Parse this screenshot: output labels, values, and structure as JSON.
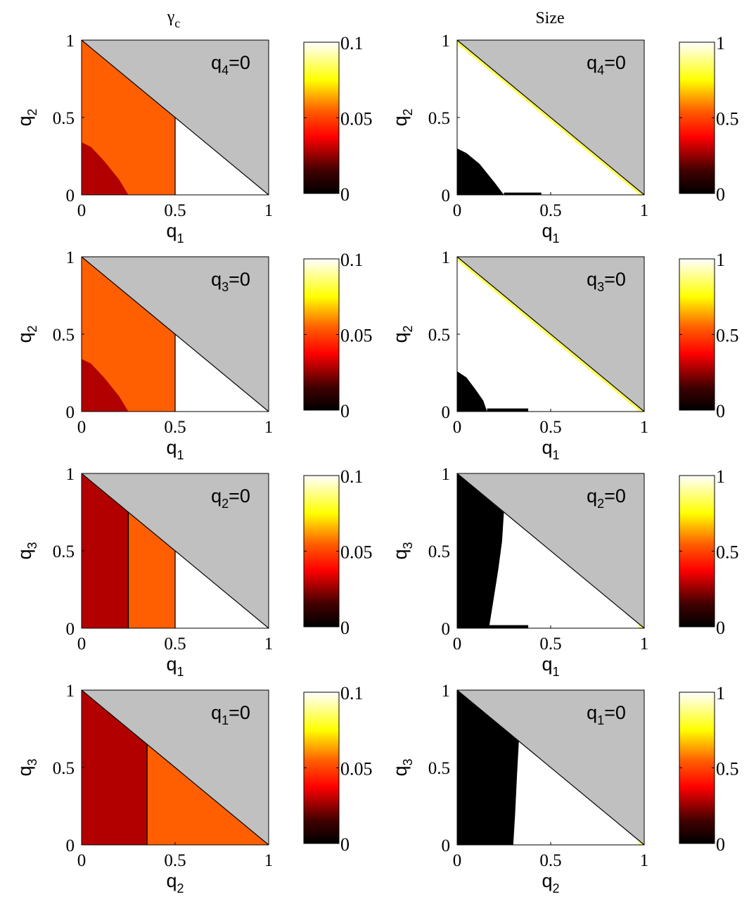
{
  "column_titles": {
    "left": {
      "main": "γ",
      "sub": "c"
    },
    "right": {
      "main": "Size",
      "sub": ""
    }
  },
  "colors": {
    "simplex_excluded": "#c0c0c0",
    "low_region": "#b20000",
    "mid_region": "#ff5f00",
    "zero_region": "#ffffff",
    "size_zero": "#000000",
    "size_edge": "#ffff60",
    "colormap": "hot"
  },
  "chart_data": [
    {
      "type": "heatmap",
      "panel": "gamma_c_q4_zero",
      "column": "left",
      "annotation": {
        "main": "q",
        "sub": "4",
        "rest": "=0"
      },
      "xlabel": {
        "main": "q",
        "sub": "1"
      },
      "ylabel": {
        "main": "q",
        "sub": "2"
      },
      "xlim": [
        0,
        1
      ],
      "ylim": [
        0,
        1
      ],
      "x_ticks": [
        "0",
        "0.5",
        "1"
      ],
      "y_ticks": [
        "0",
        "0.5",
        "1"
      ],
      "colorbar": {
        "range": [
          0,
          0.1
        ],
        "ticks": [
          "0",
          "0.05",
          "0.1"
        ]
      },
      "regions": [
        {
          "fill": "mid_region",
          "polygon": [
            [
              0,
              0
            ],
            [
              0.5,
              0
            ],
            [
              0.5,
              0.5
            ],
            [
              0,
              1
            ]
          ]
        },
        {
          "fill": "low_region",
          "polygon": [
            [
              0,
              0
            ],
            [
              0.25,
              0
            ],
            [
              0.2,
              0.1
            ],
            [
              0.12,
              0.22
            ],
            [
              0.05,
              0.31
            ],
            [
              0,
              0.34
            ]
          ]
        },
        {
          "fill": "zero_region",
          "polygon": [
            [
              0.5,
              0
            ],
            [
              1,
              0
            ],
            [
              0.5,
              0.5
            ]
          ]
        }
      ],
      "boundaries": [
        [
          [
            0.5,
            0
          ],
          [
            0.5,
            0.5
          ]
        ]
      ]
    },
    {
      "type": "heatmap",
      "panel": "size_q4_zero",
      "column": "right",
      "annotation": {
        "main": "q",
        "sub": "4",
        "rest": "=0"
      },
      "xlabel": {
        "main": "q",
        "sub": "1"
      },
      "ylabel": {
        "main": "q",
        "sub": "2"
      },
      "xlim": [
        0,
        1
      ],
      "ylim": [
        0,
        1
      ],
      "x_ticks": [
        "0",
        "0.5",
        "1"
      ],
      "y_ticks": [
        "0",
        "0.5",
        "1"
      ],
      "colorbar": {
        "range": [
          0,
          1
        ],
        "ticks": [
          "0",
          "0.5",
          "1"
        ]
      },
      "regions": [
        {
          "fill": "zero_region",
          "polygon": [
            [
              0,
              0
            ],
            [
              1,
              0
            ],
            [
              0,
              1
            ]
          ]
        },
        {
          "fill": "size_zero",
          "polygon": [
            [
              0,
              0
            ],
            [
              0.25,
              0
            ],
            [
              0.2,
              0.08
            ],
            [
              0.12,
              0.2
            ],
            [
              0.05,
              0.27
            ],
            [
              0,
              0.3
            ]
          ]
        },
        {
          "fill": "size_zero",
          "polygon": [
            [
              0.25,
              0
            ],
            [
              0.45,
              0
            ],
            [
              0.45,
              0.015
            ],
            [
              0.25,
              0.015
            ]
          ]
        },
        {
          "fill": "size_edge",
          "polygon": [
            [
              0,
              1
            ],
            [
              0,
              0.975
            ],
            [
              0.975,
              0
            ],
            [
              1,
              0
            ]
          ]
        },
        {
          "fill": "size_edge",
          "polygon": [
            [
              0.97,
              0
            ],
            [
              1,
              0
            ],
            [
              0.97,
              0.03
            ]
          ]
        }
      ],
      "boundaries": []
    },
    {
      "type": "heatmap",
      "panel": "gamma_c_q3_zero",
      "column": "left",
      "annotation": {
        "main": "q",
        "sub": "3",
        "rest": "=0"
      },
      "xlabel": {
        "main": "q",
        "sub": "1"
      },
      "ylabel": {
        "main": "q",
        "sub": "2"
      },
      "xlim": [
        0,
        1
      ],
      "ylim": [
        0,
        1
      ],
      "x_ticks": [
        "0",
        "0.5",
        "1"
      ],
      "y_ticks": [
        "0",
        "0.5",
        "1"
      ],
      "colorbar": {
        "range": [
          0,
          0.1
        ],
        "ticks": [
          "0",
          "0.05",
          "0.1"
        ]
      },
      "regions": [
        {
          "fill": "mid_region",
          "polygon": [
            [
              0,
              0
            ],
            [
              0.5,
              0
            ],
            [
              0.5,
              0.5
            ],
            [
              0,
              1
            ]
          ]
        },
        {
          "fill": "low_region",
          "polygon": [
            [
              0,
              0
            ],
            [
              0.25,
              0
            ],
            [
              0.2,
              0.1
            ],
            [
              0.12,
              0.22
            ],
            [
              0.05,
              0.31
            ],
            [
              0,
              0.34
            ]
          ]
        },
        {
          "fill": "zero_region",
          "polygon": [
            [
              0.5,
              0
            ],
            [
              1,
              0
            ],
            [
              0.5,
              0.5
            ]
          ]
        }
      ],
      "boundaries": [
        [
          [
            0.5,
            0
          ],
          [
            0.5,
            0.5
          ]
        ]
      ]
    },
    {
      "type": "heatmap",
      "panel": "size_q3_zero",
      "column": "right",
      "annotation": {
        "main": "q",
        "sub": "3",
        "rest": "=0"
      },
      "xlabel": {
        "main": "q",
        "sub": "1"
      },
      "ylabel": {
        "main": "q",
        "sub": "2"
      },
      "xlim": [
        0,
        1
      ],
      "ylim": [
        0,
        1
      ],
      "x_ticks": [
        "0",
        "0.5",
        "1"
      ],
      "y_ticks": [
        "0",
        "0.5",
        "1"
      ],
      "colorbar": {
        "range": [
          0,
          1
        ],
        "ticks": [
          "0",
          "0.5",
          "1"
        ]
      },
      "regions": [
        {
          "fill": "zero_region",
          "polygon": [
            [
              0,
              0
            ],
            [
              1,
              0
            ],
            [
              0,
              1
            ]
          ]
        },
        {
          "fill": "size_zero",
          "polygon": [
            [
              0,
              0
            ],
            [
              0.16,
              0
            ],
            [
              0.14,
              0.07
            ],
            [
              0.1,
              0.14
            ],
            [
              0.05,
              0.22
            ],
            [
              0,
              0.26
            ]
          ]
        },
        {
          "fill": "size_zero",
          "polygon": [
            [
              0.16,
              0
            ],
            [
              0.38,
              0
            ],
            [
              0.38,
              0.02
            ],
            [
              0.16,
              0.02
            ]
          ]
        },
        {
          "fill": "size_edge",
          "polygon": [
            [
              0,
              1
            ],
            [
              0,
              0.975
            ],
            [
              0.975,
              0
            ],
            [
              1,
              0
            ]
          ]
        },
        {
          "fill": "size_edge",
          "polygon": [
            [
              0.97,
              0
            ],
            [
              1,
              0
            ],
            [
              0.97,
              0.03
            ]
          ]
        }
      ],
      "boundaries": []
    },
    {
      "type": "heatmap",
      "panel": "gamma_c_q2_zero",
      "column": "left",
      "annotation": {
        "main": "q",
        "sub": "2",
        "rest": "=0"
      },
      "xlabel": {
        "main": "q",
        "sub": "1"
      },
      "ylabel": {
        "main": "q",
        "sub": "3"
      },
      "xlim": [
        0,
        1
      ],
      "ylim": [
        0,
        1
      ],
      "x_ticks": [
        "0",
        "0.5",
        "1"
      ],
      "y_ticks": [
        "0",
        "0.5",
        "1"
      ],
      "colorbar": {
        "range": [
          0,
          0.1
        ],
        "ticks": [
          "0",
          "0.05",
          "0.1"
        ]
      },
      "regions": [
        {
          "fill": "low_region",
          "polygon": [
            [
              0,
              0
            ],
            [
              0.25,
              0
            ],
            [
              0.25,
              0.75
            ],
            [
              0,
              1
            ]
          ]
        },
        {
          "fill": "mid_region",
          "polygon": [
            [
              0.25,
              0
            ],
            [
              0.5,
              0
            ],
            [
              0.5,
              0.5
            ],
            [
              0.25,
              0.75
            ]
          ]
        },
        {
          "fill": "zero_region",
          "polygon": [
            [
              0.5,
              0
            ],
            [
              1,
              0
            ],
            [
              0.5,
              0.5
            ]
          ]
        }
      ],
      "boundaries": [
        [
          [
            0.25,
            0
          ],
          [
            0.25,
            0.75
          ]
        ],
        [
          [
            0.5,
            0
          ],
          [
            0.5,
            0.5
          ]
        ]
      ]
    },
    {
      "type": "heatmap",
      "panel": "size_q2_zero",
      "column": "right",
      "annotation": {
        "main": "q",
        "sub": "2",
        "rest": "=0"
      },
      "xlabel": {
        "main": "q",
        "sub": "1"
      },
      "ylabel": {
        "main": "q",
        "sub": "3"
      },
      "xlim": [
        0,
        1
      ],
      "ylim": [
        0,
        1
      ],
      "x_ticks": [
        "0",
        "0.5",
        "1"
      ],
      "y_ticks": [
        "0",
        "0.5",
        "1"
      ],
      "colorbar": {
        "range": [
          0,
          1
        ],
        "ticks": [
          "0",
          "0.5",
          "1"
        ]
      },
      "regions": [
        {
          "fill": "zero_region",
          "polygon": [
            [
              0,
              0
            ],
            [
              1,
              0
            ],
            [
              0,
              1
            ]
          ]
        },
        {
          "fill": "size_zero",
          "polygon": [
            [
              0,
              0
            ],
            [
              0.17,
              0
            ],
            [
              0.19,
              0.15
            ],
            [
              0.22,
              0.38
            ],
            [
              0.24,
              0.56
            ],
            [
              0.25,
              0.75
            ],
            [
              0,
              1
            ]
          ]
        },
        {
          "fill": "size_zero",
          "polygon": [
            [
              0.17,
              0
            ],
            [
              0.38,
              0
            ],
            [
              0.38,
              0.02
            ],
            [
              0.17,
              0.02
            ]
          ]
        },
        {
          "fill": "size_edge",
          "polygon": [
            [
              0.97,
              0
            ],
            [
              1,
              0
            ],
            [
              0.97,
              0.03
            ]
          ]
        }
      ],
      "boundaries": []
    },
    {
      "type": "heatmap",
      "panel": "gamma_c_q1_zero",
      "column": "left",
      "annotation": {
        "main": "q",
        "sub": "1",
        "rest": "=0"
      },
      "xlabel": {
        "main": "q",
        "sub": "2"
      },
      "ylabel": {
        "main": "q",
        "sub": "3"
      },
      "xlim": [
        0,
        1
      ],
      "ylim": [
        0,
        1
      ],
      "x_ticks": [
        "0",
        "0.5",
        "1"
      ],
      "y_ticks": [
        "0",
        "0.5",
        "1"
      ],
      "colorbar": {
        "range": [
          0,
          0.1
        ],
        "ticks": [
          "0",
          "0.05",
          "0.1"
        ]
      },
      "regions": [
        {
          "fill": "low_region",
          "polygon": [
            [
              0,
              0
            ],
            [
              0.35,
              0
            ],
            [
              0.35,
              0.65
            ],
            [
              0,
              1
            ]
          ]
        },
        {
          "fill": "mid_region",
          "polygon": [
            [
              0.35,
              0
            ],
            [
              1,
              0
            ],
            [
              0.35,
              0.65
            ]
          ]
        }
      ],
      "boundaries": [
        [
          [
            0.35,
            0
          ],
          [
            0.35,
            0.65
          ]
        ]
      ]
    },
    {
      "type": "heatmap",
      "panel": "size_q1_zero",
      "column": "right",
      "annotation": {
        "main": "q",
        "sub": "1",
        "rest": "=0"
      },
      "xlabel": {
        "main": "q",
        "sub": "2"
      },
      "ylabel": {
        "main": "q",
        "sub": "3"
      },
      "xlim": [
        0,
        1
      ],
      "ylim": [
        0,
        1
      ],
      "x_ticks": [
        "0",
        "0.5",
        "1"
      ],
      "y_ticks": [
        "0",
        "0.5",
        "1"
      ],
      "colorbar": {
        "range": [
          0,
          1
        ],
        "ticks": [
          "0",
          "0.5",
          "1"
        ]
      },
      "regions": [
        {
          "fill": "zero_region",
          "polygon": [
            [
              0,
              0
            ],
            [
              1,
              0
            ],
            [
              0,
              1
            ]
          ]
        },
        {
          "fill": "size_zero",
          "polygon": [
            [
              0,
              0
            ],
            [
              0.3,
              0
            ],
            [
              0.31,
              0.2
            ],
            [
              0.32,
              0.45
            ],
            [
              0.33,
              0.67
            ],
            [
              0,
              1
            ]
          ]
        },
        {
          "fill": "size_edge",
          "polygon": [
            [
              0.97,
              0
            ],
            [
              1,
              0
            ],
            [
              0.97,
              0.03
            ]
          ]
        }
      ],
      "boundaries": []
    }
  ]
}
